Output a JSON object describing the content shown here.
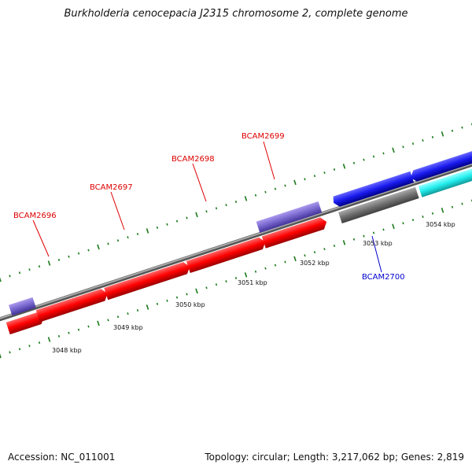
{
  "title": "Burkholderia cenocepacia J2315 chromosome 2, complete genome",
  "footer": {
    "accession": "Accession: NC_011001",
    "summary": "Topology: circular; Length: 3,217,062 bp; Genes: 2,819"
  },
  "ruler_labels": {
    "kbp3048": "3048 kbp",
    "kbp3049": "3049 kbp",
    "kbp3050": "3050 kbp",
    "kbp3051": "3051 kbp",
    "kbp3052": "3052 kbp",
    "kbp3053": "3053 kbp",
    "kbp3054": "3054 kbp"
  },
  "gene_labels": {
    "bcam2696": "BCAM2696",
    "bcam2697": "BCAM2697",
    "bcam2698": "BCAM2698",
    "bcam2699": "BCAM2699",
    "bcam2700": "BCAM2700"
  },
  "colors": {
    "forward_gene": "#ff0000",
    "forward_rna": "#7766cc",
    "reverse_gene": "#1a1aee",
    "reverse_cyan": "#22eeee",
    "reverse_gray": "#707070",
    "backbone": "#888888",
    "tick": "#1a7a1a",
    "forward_label": "#dd0000",
    "reverse_label": "#0000cc"
  }
}
